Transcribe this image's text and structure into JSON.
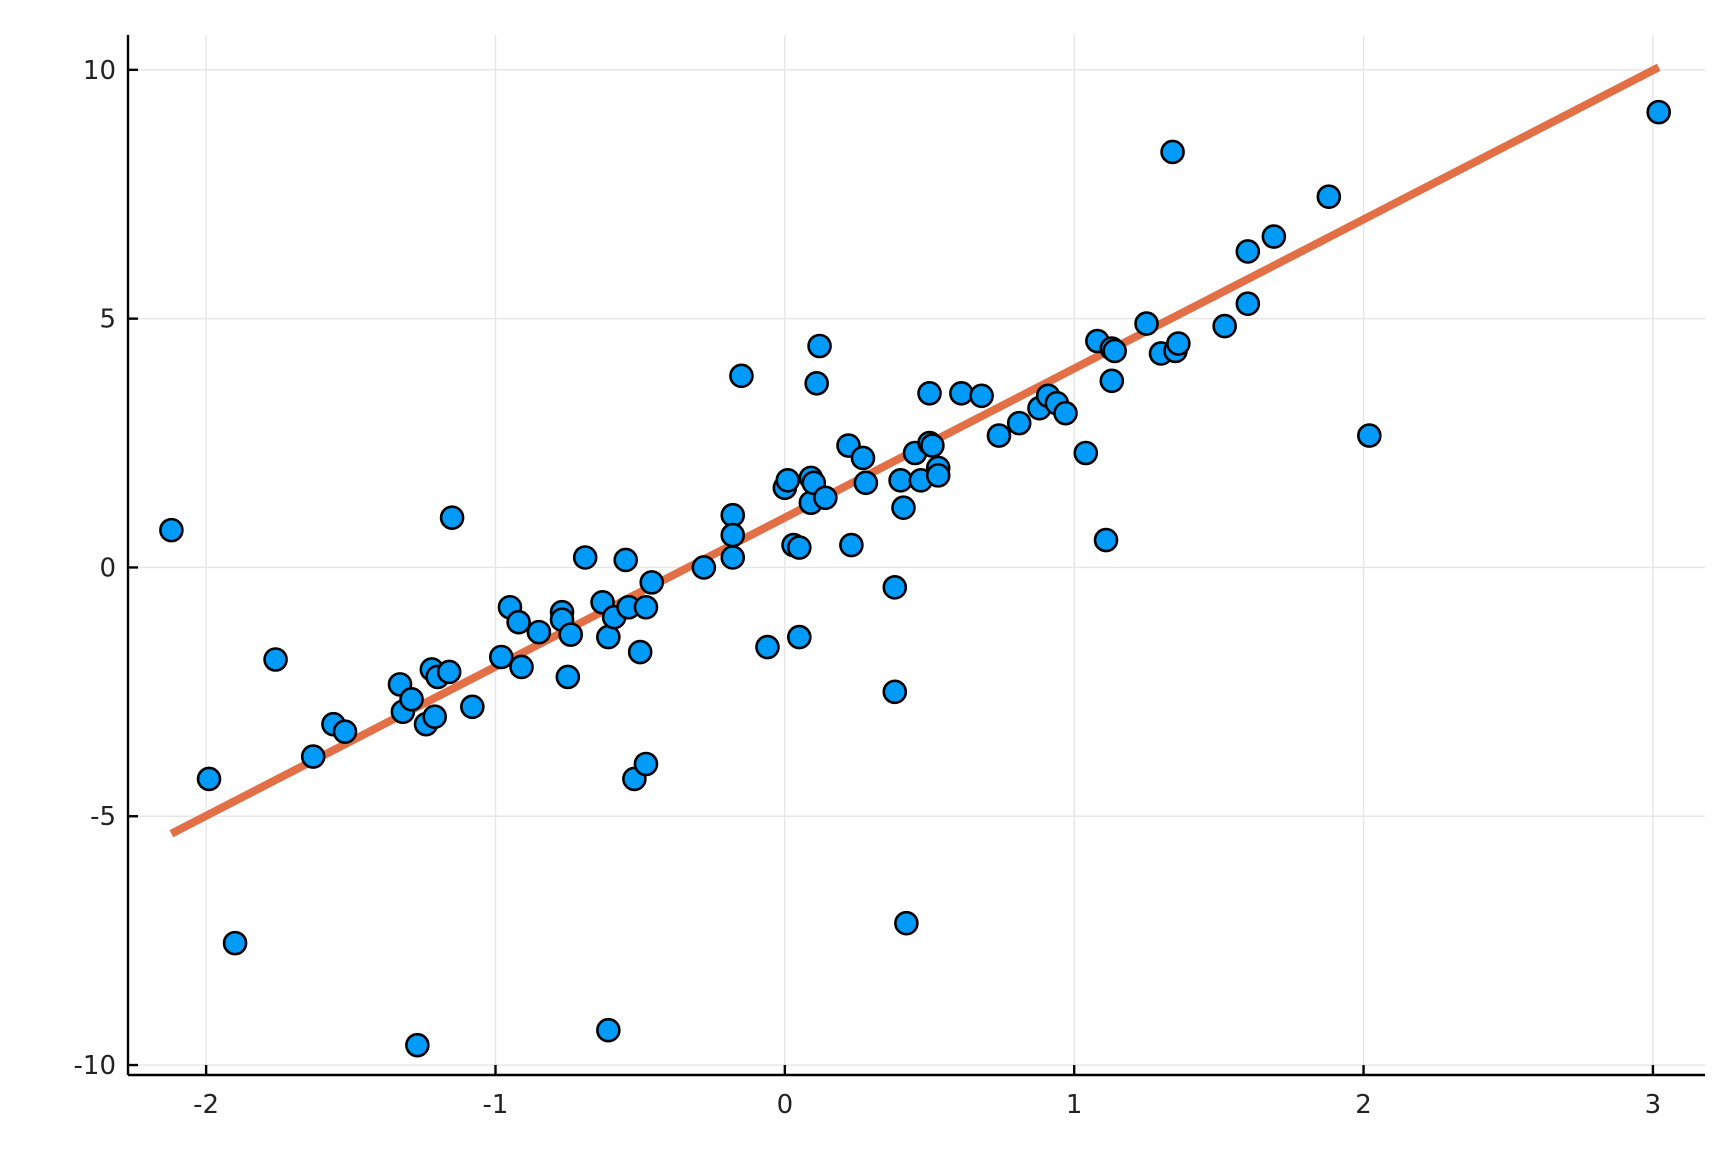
{
  "colors": {
    "background": "#ffffff",
    "points": "#009af9",
    "point_outline": "#000000",
    "fit_line": "#e26f46",
    "grid": "#e6e6e6",
    "axis": "#000000"
  },
  "chart_data": {
    "type": "scatter",
    "title": "",
    "xlabel": "",
    "ylabel": "",
    "xlim": [
      -2.27,
      3.18
    ],
    "ylim": [
      -10.2,
      10.7
    ],
    "grid": true,
    "legend": "none",
    "x_ticks": [
      -2,
      -1,
      0,
      1,
      2,
      3
    ],
    "x_tick_labels": [
      "-2",
      "-1",
      "0",
      "1",
      "2",
      "3"
    ],
    "y_ticks": [
      -10,
      -5,
      0,
      5,
      10
    ],
    "y_tick_labels": [
      "-10",
      "-5",
      "0",
      "5",
      "10"
    ],
    "series": [
      {
        "kind": "points",
        "x": [
          -2.12,
          -1.99,
          -1.9,
          -1.76,
          -1.63,
          -1.56,
          -1.52,
          -1.33,
          -1.32,
          -1.29,
          -1.27,
          -1.24,
          -1.22,
          -1.21,
          -1.2,
          -1.16,
          -1.15,
          -1.08,
          -0.98,
          -0.95,
          -0.92,
          -0.91,
          -0.85,
          -0.77,
          -0.77,
          -0.75,
          -0.74,
          -0.69,
          -0.63,
          -0.61,
          -0.61,
          -0.59,
          -0.55,
          -0.54,
          -0.52,
          -0.5,
          -0.48,
          -0.48,
          -0.46,
          -0.28,
          -0.18,
          -0.18,
          -0.18,
          -0.15,
          -0.06,
          0.0,
          0.01,
          0.03,
          0.05,
          0.05,
          0.09,
          0.09,
          0.1,
          0.11,
          0.12,
          0.14,
          0.22,
          0.23,
          0.27,
          0.28,
          0.38,
          0.38,
          0.4,
          0.41,
          0.42,
          0.45,
          0.47,
          0.5,
          0.5,
          0.51,
          0.53,
          0.53,
          0.61,
          0.68,
          0.74,
          0.81,
          0.88,
          0.91,
          0.94,
          0.97,
          1.04,
          1.08,
          1.11,
          1.13,
          1.13,
          1.14,
          1.25,
          1.3,
          1.34,
          1.35,
          1.36,
          1.52,
          1.6,
          1.6,
          1.69,
          1.88,
          2.02,
          3.02
        ],
        "y": [
          0.75,
          -4.25,
          -7.55,
          -1.85,
          -3.8,
          -3.15,
          -3.3,
          -2.35,
          -2.9,
          -2.65,
          -9.6,
          -3.15,
          -2.05,
          -3.0,
          -2.2,
          -2.1,
          1.0,
          -2.8,
          -1.8,
          -0.8,
          -1.1,
          -2.0,
          -1.3,
          -0.9,
          -1.05,
          -2.2,
          -1.35,
          0.2,
          -0.7,
          -1.4,
          -9.3,
          -1.0,
          0.15,
          -0.8,
          -4.25,
          -1.7,
          -3.95,
          -0.8,
          -0.3,
          0.0,
          1.05,
          0.65,
          0.2,
          3.85,
          -1.6,
          1.6,
          1.75,
          0.45,
          -1.4,
          0.4,
          1.8,
          1.3,
          1.7,
          3.7,
          4.45,
          1.4,
          2.45,
          0.45,
          2.2,
          1.7,
          -0.4,
          -2.5,
          1.75,
          1.2,
          -7.15,
          2.3,
          1.75,
          3.5,
          2.5,
          2.45,
          2.0,
          1.85,
          3.5,
          3.45,
          2.65,
          2.9,
          3.2,
          3.45,
          3.3,
          3.1,
          2.3,
          4.55,
          0.55,
          4.4,
          3.75,
          4.35,
          4.9,
          4.3,
          8.35,
          4.35,
          4.5,
          4.85,
          6.35,
          5.3,
          6.65,
          7.45,
          2.65,
          9.15
        ]
      },
      {
        "kind": "line",
        "x": [
          -2.12,
          3.02
        ],
        "y": [
          -5.35,
          10.05
        ]
      }
    ]
  }
}
